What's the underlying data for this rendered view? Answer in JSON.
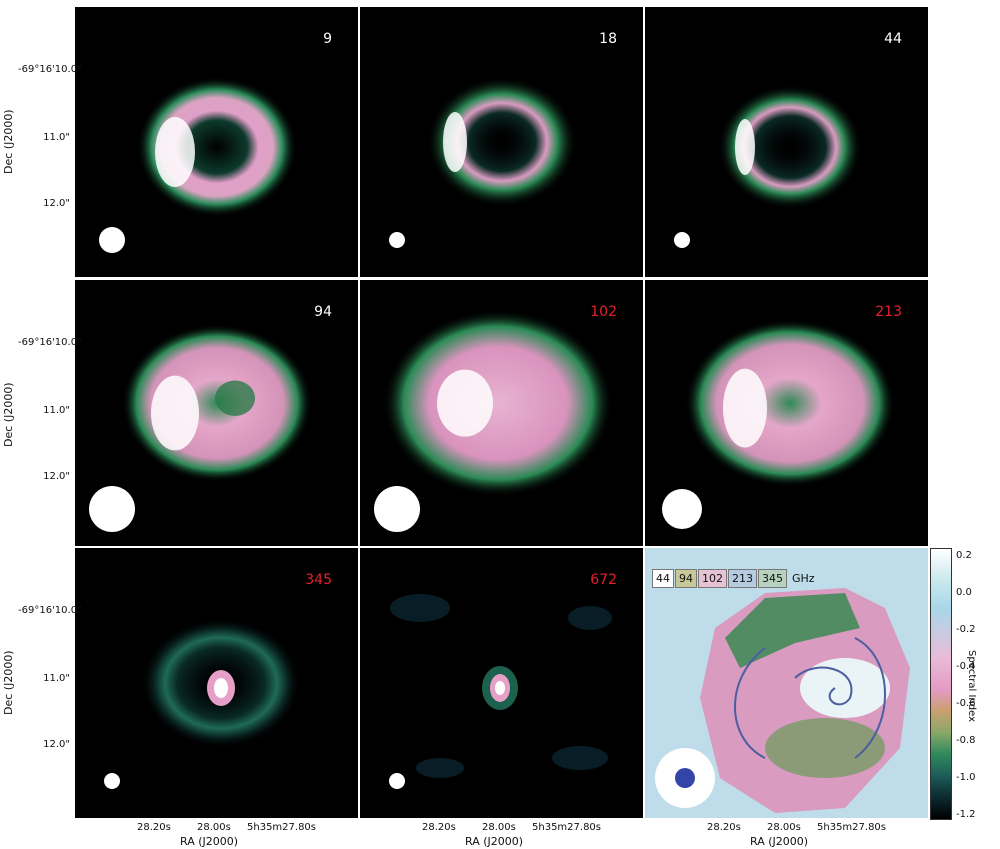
{
  "axes": {
    "ylabel": "Dec (J2000)",
    "xlabel": "RA (J2000)",
    "yticks": [
      "-69°16'10.0\"",
      "11.0\"",
      "12.0\""
    ],
    "xticks": [
      "28.20s",
      "28.00s",
      "5h35m27.80s"
    ]
  },
  "panels": [
    {
      "freq": "9",
      "freq_color": "#ffffff",
      "beam": "small"
    },
    {
      "freq": "18",
      "freq_color": "#ffffff",
      "beam": "tiny"
    },
    {
      "freq": "44",
      "freq_color": "#ffffff",
      "beam": "tiny"
    },
    {
      "freq": "94",
      "freq_color": "#ffffff",
      "beam": "large"
    },
    {
      "freq": "102",
      "freq_color": "#e8202a",
      "beam": "large"
    },
    {
      "freq": "213",
      "freq_color": "#e8202a",
      "beam": "medium"
    },
    {
      "freq": "345",
      "freq_color": "#e8202a",
      "beam": "tiny"
    },
    {
      "freq": "672",
      "freq_color": "#e8202a",
      "beam": "tiny"
    }
  ],
  "spectral_panel": {
    "legend": [
      "44",
      "94",
      "102",
      "213",
      "345"
    ],
    "legend_colors": [
      "#ffffff",
      "#c8c79a",
      "#e6c3d4",
      "#b6cbe0",
      "#b7d3c0"
    ],
    "unit": "GHz",
    "colorbar_label": "Spectral Index",
    "colorbar_ticks": [
      "0.2",
      "0.0",
      "-0.2",
      "-0.4",
      "-0.6",
      "-0.8",
      "-1.0",
      "-1.2"
    ]
  }
}
